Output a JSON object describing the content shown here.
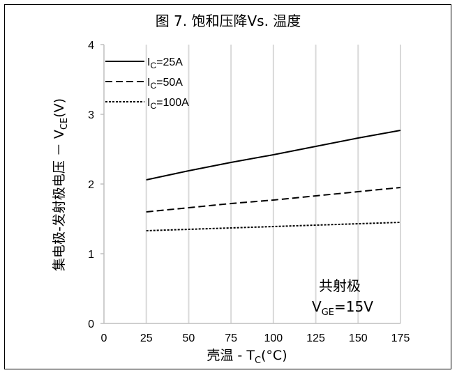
{
  "chart_data": {
    "type": "line",
    "title": "图 7. 饱和压降Vs. 温度",
    "xlabel": {
      "main": "壳温 - T",
      "sub": "C",
      "tail": "(°C)"
    },
    "ylabel": {
      "main": "集电极-发射极电压 － V",
      "sub": "CE",
      "tail": "(V)"
    },
    "xlim": [
      0,
      175
    ],
    "ylim": [
      0,
      4
    ],
    "x_ticks": [
      0,
      25,
      50,
      75,
      100,
      125,
      150,
      175
    ],
    "y_ticks": [
      0,
      1,
      2,
      3,
      4
    ],
    "grid": "vertical",
    "legend_position": "top-left",
    "series": [
      {
        "name": "I_C=25A",
        "legend_main": "I",
        "legend_sub": "C",
        "legend_tail": "=25A",
        "dash": "solid",
        "x": [
          25,
          50,
          75,
          100,
          125,
          150,
          175
        ],
        "y": [
          2.06,
          2.19,
          2.31,
          2.42,
          2.54,
          2.66,
          2.77
        ]
      },
      {
        "name": "I_C=50A",
        "legend_main": "I",
        "legend_sub": "C",
        "legend_tail": "=50A",
        "dash": "dashed",
        "x": [
          25,
          50,
          75,
          100,
          125,
          150,
          175
        ],
        "y": [
          1.6,
          1.66,
          1.72,
          1.77,
          1.83,
          1.89,
          1.95
        ]
      },
      {
        "name": "I_C=100A",
        "legend_main": "I",
        "legend_sub": "C",
        "legend_tail": "=100A",
        "dash": "dotted",
        "x": [
          25,
          50,
          75,
          100,
          125,
          150,
          175
        ],
        "y": [
          1.33,
          1.35,
          1.37,
          1.39,
          1.41,
          1.43,
          1.45
        ]
      }
    ],
    "annotation": {
      "line1": "共射极",
      "line2_main": "V",
      "line2_sub": "GE",
      "line2_tail": "=15V"
    },
    "colors": {
      "line": "#000000",
      "grid": "#d9d9d9",
      "axis": "#bfbfbf"
    }
  }
}
